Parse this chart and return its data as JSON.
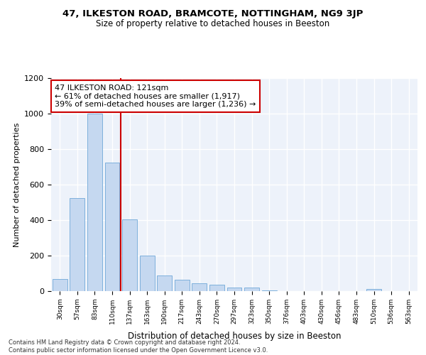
{
  "title": "47, ILKESTON ROAD, BRAMCOTE, NOTTINGHAM, NG9 3JP",
  "subtitle": "Size of property relative to detached houses in Beeston",
  "xlabel": "Distribution of detached houses by size in Beeston",
  "ylabel": "Number of detached properties",
  "bar_labels": [
    "30sqm",
    "57sqm",
    "83sqm",
    "110sqm",
    "137sqm",
    "163sqm",
    "190sqm",
    "217sqm",
    "243sqm",
    "270sqm",
    "297sqm",
    "323sqm",
    "350sqm",
    "376sqm",
    "403sqm",
    "430sqm",
    "456sqm",
    "483sqm",
    "510sqm",
    "536sqm",
    "563sqm"
  ],
  "bar_values": [
    70,
    525,
    1000,
    725,
    405,
    200,
    90,
    65,
    45,
    35,
    20,
    20,
    5,
    0,
    0,
    0,
    0,
    0,
    12,
    0,
    0
  ],
  "bar_color": "#c5d8f0",
  "bar_edgecolor": "#6fa8d8",
  "vline_index": 3,
  "vline_color": "#cc0000",
  "annotation_text": "47 ILKESTON ROAD: 121sqm\n← 61% of detached houses are smaller (1,917)\n39% of semi-detached houses are larger (1,236) →",
  "annotation_box_color": "#ffffff",
  "annotation_box_edge": "#cc0000",
  "ylim": [
    0,
    1200
  ],
  "yticks": [
    0,
    200,
    400,
    600,
    800,
    1000,
    1200
  ],
  "background_color": "#edf2fa",
  "footer_line1": "Contains HM Land Registry data © Crown copyright and database right 2024.",
  "footer_line2": "Contains public sector information licensed under the Open Government Licence v3.0."
}
